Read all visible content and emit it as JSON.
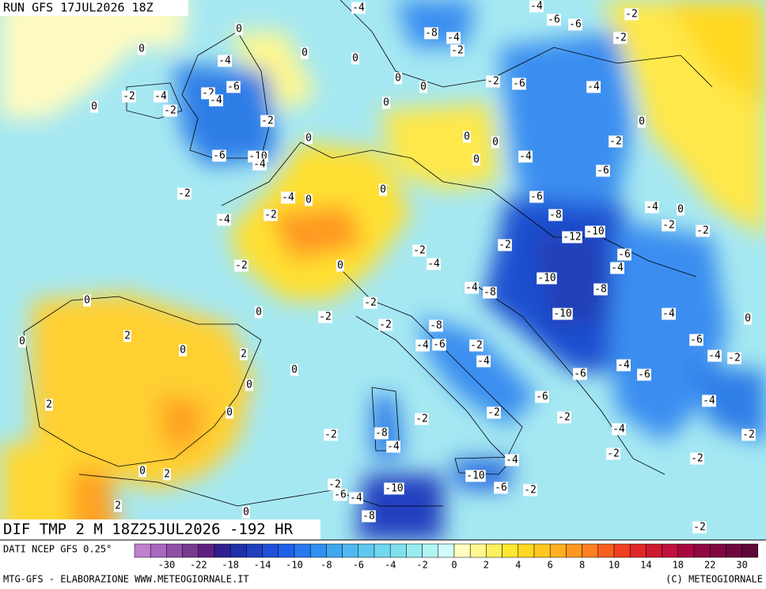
{
  "header": {
    "title": "RUN GFS 17JUL2026 18Z"
  },
  "map_title": "DIF TMP 2 M 18Z25JUL2026 -192 HR",
  "source": "DATI NCEP GFS 0.25°",
  "credit_left": "MTG-GFS - ELABORAZIONE WWW.METEOGIORNALE.IT",
  "credit_right": "(C) METEOGIORNALE",
  "colorbar": {
    "colors": [
      "#c080d0",
      "#a868c0",
      "#9050a8",
      "#783890",
      "#602080",
      "#302090",
      "#2030a8",
      "#2040c0",
      "#2050d8",
      "#2060e8",
      "#2878f0",
      "#3090f0",
      "#40a8f0",
      "#50b8f0",
      "#60c8f0",
      "#70d8f0",
      "#80e0f0",
      "#98ecf0",
      "#b0f4f4",
      "#d0fcfc",
      "#ffffc0",
      "#fff890",
      "#fff060",
      "#ffe830",
      "#ffd820",
      "#ffc820",
      "#ffb020",
      "#ff9820",
      "#ff8020",
      "#f86020",
      "#f04020",
      "#e02828",
      "#d01830",
      "#c01040",
      "#a80840",
      "#900840",
      "#800840",
      "#700840",
      "#600838"
    ],
    "ticks": [
      -30,
      -22,
      -18,
      -14,
      -10,
      -8,
      -6,
      -4,
      -2,
      0,
      2,
      4,
      6,
      8,
      10,
      14,
      18,
      22,
      30
    ]
  },
  "map_labels": [
    -4,
    -4,
    -2,
    0,
    -6,
    -6,
    -8,
    -4,
    -2,
    0,
    -4,
    0,
    0,
    -2,
    -2,
    -4,
    -2,
    -6,
    -4,
    -2,
    0,
    0,
    0,
    -2,
    -6,
    -4,
    0,
    -2,
    0,
    0,
    0,
    -2,
    0,
    -6,
    -10,
    -4,
    0,
    -4,
    -6,
    0,
    -2,
    -4,
    0,
    -6,
    -8,
    -4,
    0,
    -4,
    -2,
    -2,
    -2,
    -12,
    -10,
    -6,
    -4,
    -2,
    -4,
    -2,
    -2,
    0,
    -4,
    -8,
    -10,
    -8,
    0,
    -2,
    0,
    -2,
    -2,
    -8,
    -10,
    -4,
    0,
    -4,
    -6,
    -2,
    -6,
    -4,
    -2,
    0,
    2,
    0,
    2,
    -4,
    0,
    -6,
    -4,
    -6,
    0,
    -6,
    -2,
    -2,
    -4,
    2,
    0,
    -2,
    -2,
    -8,
    -4,
    -4,
    -2,
    -2,
    -2,
    -4,
    -10,
    0,
    2,
    -2,
    -6,
    -4,
    -10,
    -6,
    -2,
    2,
    0,
    -8,
    -2
  ]
}
